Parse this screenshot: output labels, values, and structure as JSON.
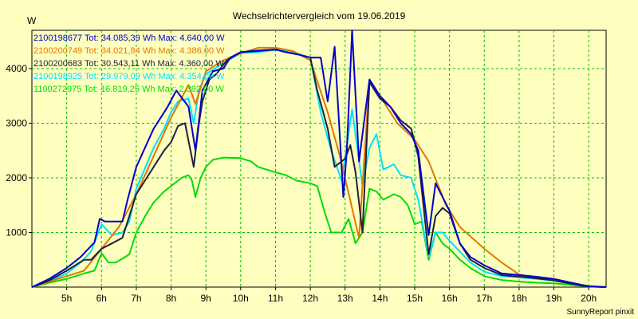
{
  "chart_data": {
    "type": "line",
    "title": "Wechselrichtervergleich vom 19.06.2019",
    "ylabel": "W",
    "xlabel": "",
    "footer": "SunnyReport pinxit",
    "xlim": [
      4.0,
      20.5
    ],
    "ylim": [
      0,
      4700
    ],
    "grid": true,
    "x_ticks": [
      {
        "value": 5,
        "label": "5h"
      },
      {
        "value": 6,
        "label": "6h"
      },
      {
        "value": 7,
        "label": "7h"
      },
      {
        "value": 8,
        "label": "8h"
      },
      {
        "value": 9,
        "label": "9h"
      },
      {
        "value": 10,
        "label": "10h"
      },
      {
        "value": 11,
        "label": "11h"
      },
      {
        "value": 12,
        "label": "12h"
      },
      {
        "value": 13,
        "label": "13h"
      },
      {
        "value": 14,
        "label": "14h"
      },
      {
        "value": 15,
        "label": "15h"
      },
      {
        "value": 16,
        "label": "16h"
      },
      {
        "value": 17,
        "label": "17h"
      },
      {
        "value": 18,
        "label": "18h"
      },
      {
        "value": 19,
        "label": "19h"
      },
      {
        "value": 20,
        "label": "20h"
      }
    ],
    "y_ticks": [
      {
        "value": 1000,
        "label": "1000"
      },
      {
        "value": 2000,
        "label": "2000"
      },
      {
        "value": 3000,
        "label": "3000"
      },
      {
        "value": 4000,
        "label": "4000"
      }
    ],
    "legend_position": "top-left",
    "series": [
      {
        "name": "2100198677",
        "legend_label": "2100198677 Tot: 34.085,39 Wh Max: 4.640,00 W",
        "color": "#0000cc",
        "points": [
          [
            4.0,
            0
          ],
          [
            4.5,
            150
          ],
          [
            5.0,
            350
          ],
          [
            5.4,
            550
          ],
          [
            5.8,
            820
          ],
          [
            5.95,
            1250
          ],
          [
            6.1,
            1200
          ],
          [
            6.6,
            1200
          ],
          [
            6.75,
            1600
          ],
          [
            7.0,
            2200
          ],
          [
            7.5,
            2900
          ],
          [
            7.9,
            3300
          ],
          [
            8.15,
            3600
          ],
          [
            8.5,
            3300
          ],
          [
            8.7,
            2500
          ],
          [
            8.9,
            3600
          ],
          [
            9.2,
            3950
          ],
          [
            9.5,
            4000
          ],
          [
            9.7,
            4200
          ],
          [
            10.0,
            4300
          ],
          [
            10.5,
            4330
          ],
          [
            11.0,
            4350
          ],
          [
            11.3,
            4300
          ],
          [
            11.7,
            4250
          ],
          [
            12.0,
            4200
          ],
          [
            12.3,
            4200
          ],
          [
            12.5,
            3400
          ],
          [
            12.7,
            4400
          ],
          [
            12.95,
            1650
          ],
          [
            13.05,
            2500
          ],
          [
            13.2,
            4700
          ],
          [
            13.4,
            2300
          ],
          [
            13.7,
            3800
          ],
          [
            14.0,
            3500
          ],
          [
            14.3,
            3300
          ],
          [
            14.6,
            3000
          ],
          [
            14.9,
            2800
          ],
          [
            15.1,
            2500
          ],
          [
            15.4,
            950
          ],
          [
            15.6,
            1900
          ],
          [
            16.0,
            1400
          ],
          [
            16.3,
            800
          ],
          [
            16.6,
            550
          ],
          [
            17.0,
            400
          ],
          [
            17.5,
            250
          ],
          [
            18.0,
            220
          ],
          [
            18.5,
            190
          ],
          [
            19.0,
            150
          ],
          [
            19.5,
            80
          ],
          [
            20.0,
            15
          ],
          [
            20.5,
            0
          ]
        ]
      },
      {
        "name": "2100200749",
        "legend_label": "2100200749 Tot: 34.021,84 Wh Max: 4.386,00 W",
        "color": "#e07800",
        "points": [
          [
            4.0,
            0
          ],
          [
            4.5,
            100
          ],
          [
            5.0,
            200
          ],
          [
            5.5,
            300
          ],
          [
            6.0,
            700
          ],
          [
            6.5,
            1100
          ],
          [
            7.0,
            1700
          ],
          [
            7.5,
            2400
          ],
          [
            8.0,
            3100
          ],
          [
            8.5,
            3700
          ],
          [
            8.7,
            3350
          ],
          [
            9.0,
            3950
          ],
          [
            9.5,
            4150
          ],
          [
            10.0,
            4280
          ],
          [
            10.5,
            4380
          ],
          [
            11.0,
            4380
          ],
          [
            11.5,
            4320
          ],
          [
            12.0,
            4150
          ],
          [
            12.5,
            3200
          ],
          [
            12.85,
            2400
          ],
          [
            13.4,
            900
          ],
          [
            13.7,
            3800
          ],
          [
            14.5,
            3000
          ],
          [
            15.0,
            2700
          ],
          [
            15.4,
            2300
          ],
          [
            15.9,
            1500
          ],
          [
            16.3,
            1100
          ],
          [
            17.0,
            700
          ],
          [
            17.5,
            450
          ],
          [
            18.0,
            230
          ],
          [
            18.5,
            170
          ],
          [
            19.0,
            120
          ],
          [
            19.5,
            70
          ],
          [
            20.0,
            20
          ],
          [
            20.5,
            0
          ]
        ]
      },
      {
        "name": "2100200683",
        "legend_label": "2100200683 Tot: 30.543,11 Wh Max: 4.360,00 W",
        "color": "#202040",
        "points": [
          [
            4.0,
            0
          ],
          [
            4.5,
            120
          ],
          [
            5.0,
            300
          ],
          [
            5.3,
            420
          ],
          [
            5.5,
            500
          ],
          [
            5.7,
            500
          ],
          [
            6.0,
            700
          ],
          [
            6.3,
            800
          ],
          [
            6.6,
            900
          ],
          [
            6.8,
            1300
          ],
          [
            7.0,
            1700
          ],
          [
            7.3,
            2000
          ],
          [
            7.5,
            2200
          ],
          [
            7.8,
            2500
          ],
          [
            8.0,
            2650
          ],
          [
            8.2,
            2950
          ],
          [
            8.4,
            3000
          ],
          [
            8.65,
            2200
          ],
          [
            8.8,
            3000
          ],
          [
            8.9,
            3400
          ],
          [
            9.1,
            3800
          ],
          [
            9.3,
            3900
          ],
          [
            9.6,
            4150
          ],
          [
            10.0,
            4300
          ],
          [
            10.5,
            4320
          ],
          [
            11.0,
            4350
          ],
          [
            11.3,
            4300
          ],
          [
            11.7,
            4250
          ],
          [
            12.0,
            4200
          ],
          [
            12.2,
            3600
          ],
          [
            12.5,
            2900
          ],
          [
            12.7,
            2200
          ],
          [
            13.0,
            2350
          ],
          [
            13.15,
            2600
          ],
          [
            13.3,
            2100
          ],
          [
            13.5,
            1000
          ],
          [
            13.7,
            3750
          ],
          [
            14.0,
            3450
          ],
          [
            14.3,
            3300
          ],
          [
            14.6,
            3050
          ],
          [
            14.9,
            2900
          ],
          [
            15.1,
            2400
          ],
          [
            15.3,
            1200
          ],
          [
            15.4,
            600
          ],
          [
            15.6,
            1300
          ],
          [
            15.8,
            1450
          ],
          [
            16.0,
            1350
          ],
          [
            16.3,
            800
          ],
          [
            16.6,
            500
          ],
          [
            17.0,
            350
          ],
          [
            17.5,
            220
          ],
          [
            18.0,
            190
          ],
          [
            18.5,
            160
          ],
          [
            19.0,
            120
          ],
          [
            19.5,
            60
          ],
          [
            20.0,
            10
          ],
          [
            20.5,
            0
          ]
        ]
      },
      {
        "name": "2100198925",
        "legend_label": "2100198925 Tot: 29.979,09 Wh Max: 4.354,00 W",
        "color": "#00e0ff",
        "points": [
          [
            4.0,
            0
          ],
          [
            4.5,
            100
          ],
          [
            5.0,
            250
          ],
          [
            5.4,
            450
          ],
          [
            5.7,
            650
          ],
          [
            6.0,
            1150
          ],
          [
            6.3,
            950
          ],
          [
            6.6,
            1000
          ],
          [
            6.8,
            1200
          ],
          [
            7.0,
            1800
          ],
          [
            7.5,
            2550
          ],
          [
            7.8,
            2900
          ],
          [
            8.0,
            3200
          ],
          [
            8.2,
            3400
          ],
          [
            8.5,
            3450
          ],
          [
            8.65,
            3000
          ],
          [
            8.8,
            3600
          ],
          [
            9.0,
            3900
          ],
          [
            9.5,
            4100
          ],
          [
            10.0,
            4280
          ],
          [
            10.5,
            4300
          ],
          [
            11.0,
            4340
          ],
          [
            11.5,
            4300
          ],
          [
            12.0,
            4200
          ],
          [
            12.3,
            3200
          ],
          [
            12.6,
            2500
          ],
          [
            12.9,
            1950
          ],
          [
            13.2,
            3250
          ],
          [
            13.5,
            1850
          ],
          [
            13.7,
            2550
          ],
          [
            13.9,
            2800
          ],
          [
            14.1,
            2150
          ],
          [
            14.4,
            2250
          ],
          [
            14.6,
            2050
          ],
          [
            14.9,
            2000
          ],
          [
            15.1,
            1600
          ],
          [
            15.4,
            550
          ],
          [
            15.6,
            1000
          ],
          [
            15.8,
            1000
          ],
          [
            16.0,
            850
          ],
          [
            16.3,
            650
          ],
          [
            16.6,
            450
          ],
          [
            17.0,
            280
          ],
          [
            17.5,
            200
          ],
          [
            18.0,
            180
          ],
          [
            18.5,
            150
          ],
          [
            19.0,
            120
          ],
          [
            19.5,
            70
          ],
          [
            20.0,
            10
          ],
          [
            20.5,
            0
          ]
        ]
      },
      {
        "name": "1100272975",
        "legend_label": "1100272975 Tot: 16.819,25 Wh Max: 2.392,00 W",
        "color": "#00dd00",
        "points": [
          [
            4.0,
            0
          ],
          [
            4.5,
            80
          ],
          [
            5.0,
            150
          ],
          [
            5.5,
            250
          ],
          [
            5.8,
            300
          ],
          [
            6.0,
            620
          ],
          [
            6.2,
            450
          ],
          [
            6.4,
            450
          ],
          [
            6.6,
            520
          ],
          [
            6.8,
            600
          ],
          [
            7.0,
            1000
          ],
          [
            7.3,
            1350
          ],
          [
            7.5,
            1550
          ],
          [
            7.8,
            1750
          ],
          [
            8.0,
            1850
          ],
          [
            8.3,
            2000
          ],
          [
            8.5,
            2050
          ],
          [
            8.6,
            1950
          ],
          [
            8.7,
            1650
          ],
          [
            8.85,
            2000
          ],
          [
            9.0,
            2200
          ],
          [
            9.2,
            2330
          ],
          [
            9.5,
            2370
          ],
          [
            10.0,
            2360
          ],
          [
            10.3,
            2300
          ],
          [
            10.5,
            2200
          ],
          [
            11.0,
            2100
          ],
          [
            11.3,
            2050
          ],
          [
            11.6,
            1950
          ],
          [
            12.0,
            1900
          ],
          [
            12.2,
            1850
          ],
          [
            12.4,
            1400
          ],
          [
            12.6,
            1000
          ],
          [
            12.9,
            1000
          ],
          [
            13.1,
            1250
          ],
          [
            13.3,
            800
          ],
          [
            13.5,
            1000
          ],
          [
            13.7,
            1800
          ],
          [
            13.9,
            1750
          ],
          [
            14.1,
            1600
          ],
          [
            14.4,
            1700
          ],
          [
            14.6,
            1650
          ],
          [
            14.8,
            1500
          ],
          [
            15.0,
            1150
          ],
          [
            15.2,
            1200
          ],
          [
            15.4,
            500
          ],
          [
            15.6,
            1000
          ],
          [
            15.8,
            800
          ],
          [
            16.0,
            700
          ],
          [
            16.3,
            500
          ],
          [
            16.6,
            350
          ],
          [
            17.0,
            200
          ],
          [
            17.5,
            130
          ],
          [
            18.0,
            100
          ],
          [
            18.5,
            80
          ],
          [
            19.0,
            70
          ],
          [
            19.5,
            40
          ],
          [
            20.0,
            10
          ],
          [
            20.5,
            0
          ]
        ]
      }
    ]
  }
}
